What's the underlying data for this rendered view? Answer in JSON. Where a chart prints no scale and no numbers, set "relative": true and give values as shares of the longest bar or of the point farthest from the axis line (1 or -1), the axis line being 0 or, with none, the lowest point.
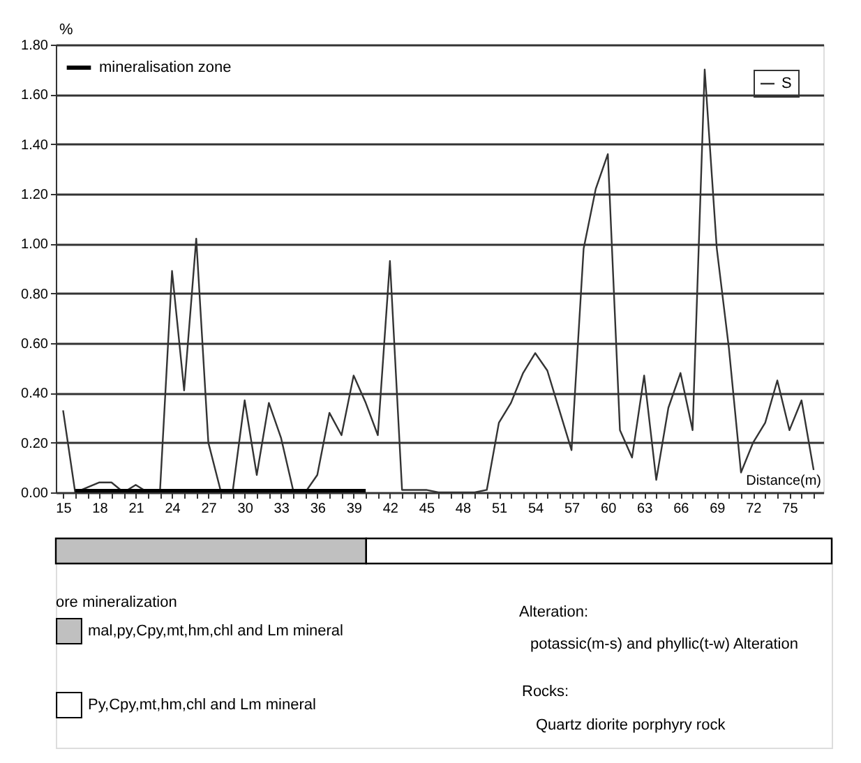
{
  "chart_data": [
    {
      "type": "line",
      "ylabel": "%",
      "xlabel": "Distance(m)",
      "legend": "top right",
      "grid": "y",
      "x": [
        15,
        16,
        17,
        18,
        19,
        20,
        21,
        22,
        23,
        24,
        25,
        26,
        27,
        28,
        29,
        30,
        31,
        32,
        33,
        34,
        35,
        36,
        37,
        38,
        39,
        40,
        41,
        42,
        43,
        44,
        45,
        46,
        47,
        48,
        49,
        50,
        51,
        52,
        53,
        54,
        55,
        56,
        57,
        58,
        59,
        60,
        61,
        62,
        63,
        64,
        65,
        66,
        67,
        68,
        69,
        70,
        71,
        72,
        73,
        74,
        75,
        76,
        77
      ],
      "series": [
        {
          "name": "S",
          "color": "#333333",
          "values": [
            0.33,
            0.0,
            0.02,
            0.04,
            0.04,
            0.0,
            0.03,
            0.0,
            0.0,
            0.89,
            0.41,
            1.02,
            0.2,
            0.01,
            0.0,
            0.37,
            0.07,
            0.36,
            0.22,
            0.01,
            0.0,
            0.07,
            0.32,
            0.23,
            0.47,
            0.36,
            0.23,
            0.93,
            0.01,
            0.01,
            0.01,
            0.0,
            0.0,
            0.0,
            0.0,
            0.01,
            0.28,
            0.36,
            0.48,
            0.56,
            0.49,
            0.33,
            0.17,
            0.98,
            1.22,
            1.36,
            0.25,
            0.14,
            0.47,
            0.05,
            0.34,
            0.48,
            0.25,
            1.7,
            0.98,
            0.58,
            0.08,
            0.2,
            0.28,
            0.45,
            0.25,
            0.37,
            0.09
          ]
        },
        {
          "name": "mineralisation zone",
          "color": "#000000",
          "x": [
            16,
            40
          ],
          "values": [
            0,
            0
          ]
        }
      ],
      "xlim": [
        14.4,
        77.8
      ],
      "xticks": [
        15,
        {
          "value": 16,
          "label": null
        },
        {
          "value": 17,
          "label": null
        },
        18,
        {
          "value": 19,
          "label": null
        },
        {
          "value": 20,
          "label": null
        },
        21,
        {
          "value": 22,
          "label": null
        },
        {
          "value": 23,
          "label": null
        },
        24,
        {
          "value": 25,
          "label": null
        },
        {
          "value": 26,
          "label": null
        },
        27,
        {
          "value": 28,
          "label": null
        },
        {
          "value": 29,
          "label": null
        },
        30,
        {
          "value": 31,
          "label": null
        },
        {
          "value": 32,
          "label": null
        },
        33,
        {
          "value": 34,
          "label": null
        },
        {
          "value": 35,
          "label": null
        },
        36,
        {
          "value": 37,
          "label": null
        },
        {
          "value": 38,
          "label": null
        },
        39,
        {
          "value": 40,
          "label": null
        },
        {
          "value": 41,
          "label": null
        },
        42,
        {
          "value": 43,
          "label": null
        },
        {
          "value": 44,
          "label": null
        },
        45,
        {
          "value": 46,
          "label": null
        },
        {
          "value": 47,
          "label": null
        },
        48,
        {
          "value": 49,
          "label": null
        },
        {
          "value": 50,
          "label": null
        },
        51,
        {
          "value": 52,
          "label": null
        },
        {
          "value": 53,
          "label": null
        },
        54,
        {
          "value": 55,
          "label": null
        },
        {
          "value": 56,
          "label": null
        },
        57,
        {
          "value": 58,
          "label": null
        },
        {
          "value": 59,
          "label": null
        },
        60,
        {
          "value": 61,
          "label": null
        },
        {
          "value": 62,
          "label": null
        },
        63,
        {
          "value": 64,
          "label": null
        },
        {
          "value": 65,
          "label": null
        },
        66,
        {
          "value": 67,
          "label": null
        },
        {
          "value": 68,
          "label": null
        },
        69,
        {
          "value": 70,
          "label": null
        },
        {
          "value": 71,
          "label": null
        },
        72,
        {
          "value": 73,
          "label": null
        },
        {
          "value": 74,
          "label": null
        },
        75,
        {
          "value": 76,
          "label": null
        },
        {
          "value": 77,
          "label": null
        }
      ],
      "ylim": [
        0,
        1.8
      ],
      "yticks": [
        {
          "value": 0,
          "label": "0.00"
        },
        {
          "value": 0.2,
          "label": "0.20"
        },
        {
          "value": 0.4,
          "label": "0.40"
        },
        {
          "value": 0.6,
          "label": "0.60"
        },
        {
          "value": 0.8,
          "label": "0.80"
        },
        {
          "value": 1.0,
          "label": "1.00"
        },
        {
          "value": 1.2,
          "label": "1.20"
        },
        {
          "value": 1.4,
          "label": "1.40"
        },
        {
          "value": 1.6,
          "label": "1.60"
        },
        {
          "value": 1.8,
          "label": "1.80"
        }
      ]
    },
    {
      "type": "bar",
      "orientation": "horizontal",
      "stacked": true,
      "relative": true,
      "categories": [
        null
      ],
      "legend": "bottom left",
      "legend_title": "ore mineralization",
      "series": [
        {
          "name": "mal,py,Cpy,mt,hm,chl and Lm mineral",
          "color": "#c0c0c0",
          "values": [
            0.4
          ]
        },
        {
          "name": "Py,Cpy,mt,hm,chl and Lm mineral",
          "color": "#ffffff",
          "values": [
            0.6
          ]
        }
      ],
      "annotations": [
        "Alteration:",
        "potassic(m-s) and phyllic(t-w) Alteration",
        "Rocks:",
        "Quartz diorite porphyry rock"
      ]
    }
  ]
}
